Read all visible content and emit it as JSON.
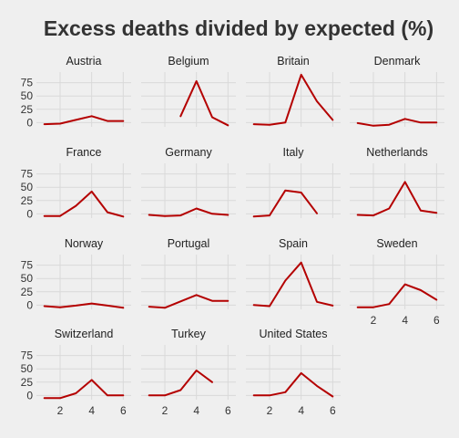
{
  "chart_data": {
    "type": "line",
    "title": "Excess deaths divided by expected (%)",
    "xlabel": "",
    "ylabel": "",
    "xlim": [
      0.5,
      6.5
    ],
    "ylim": [
      -8,
      95
    ],
    "x_ticks": [
      2,
      4,
      6
    ],
    "y_ticks": [
      0,
      25,
      50,
      75
    ],
    "grid": true,
    "line_color": "#b40000",
    "panel_background": "#efefef",
    "grid_color": "#d9d9d9",
    "series": [
      {
        "name": "Austria",
        "x": [
          1,
          2,
          3,
          4,
          5,
          6
        ],
        "values": [
          -3,
          -2,
          5,
          12,
          3,
          3
        ]
      },
      {
        "name": "Belgium",
        "x": [
          3,
          4,
          5,
          6
        ],
        "values": [
          12,
          78,
          10,
          -5
        ]
      },
      {
        "name": "Britain",
        "x": [
          1,
          2,
          3,
          4,
          5,
          6
        ],
        "values": [
          -3,
          -4,
          0,
          90,
          40,
          5
        ]
      },
      {
        "name": "Denmark",
        "x": [
          1,
          2,
          3,
          4,
          5,
          6
        ],
        "values": [
          -1,
          -6,
          -4,
          7,
          0,
          0
        ]
      },
      {
        "name": "France",
        "x": [
          1,
          2,
          3,
          4,
          5,
          6
        ],
        "values": [
          -4,
          -4,
          15,
          42,
          3,
          -5
        ]
      },
      {
        "name": "Germany",
        "x": [
          1,
          2,
          3,
          4,
          5,
          6
        ],
        "values": [
          -2,
          -4,
          -3,
          10,
          0,
          -2
        ]
      },
      {
        "name": "Italy",
        "x": [
          1,
          2,
          3,
          4,
          5
        ],
        "values": [
          -5,
          -3,
          44,
          40,
          1
        ]
      },
      {
        "name": "Netherlands",
        "x": [
          1,
          2,
          3,
          4,
          5,
          6
        ],
        "values": [
          -2,
          -3,
          10,
          60,
          6,
          2
        ]
      },
      {
        "name": "Norway",
        "x": [
          1,
          2,
          3,
          4,
          5,
          6
        ],
        "values": [
          -2,
          -4,
          -1,
          3,
          -1,
          -5
        ]
      },
      {
        "name": "Portugal",
        "x": [
          1,
          2,
          3,
          4,
          5,
          6
        ],
        "values": [
          -3,
          -5,
          7,
          19,
          8,
          8
        ]
      },
      {
        "name": "Spain",
        "x": [
          1,
          2,
          3,
          4,
          5,
          6
        ],
        "values": [
          0,
          -2,
          46,
          80,
          6,
          -1
        ]
      },
      {
        "name": "Sweden",
        "x": [
          1,
          2,
          3,
          4,
          5,
          6
        ],
        "values": [
          -4,
          -4,
          2,
          39,
          28,
          10
        ]
      },
      {
        "name": "Switzerland",
        "x": [
          1,
          2,
          3,
          4,
          5,
          6
        ],
        "values": [
          -5,
          -5,
          4,
          29,
          0,
          0
        ]
      },
      {
        "name": "Turkey",
        "x": [
          1,
          2,
          3,
          4,
          5
        ],
        "values": [
          0,
          0,
          10,
          47,
          25
        ]
      },
      {
        "name": "United States",
        "x": [
          1,
          2,
          3,
          4,
          5,
          6
        ],
        "values": [
          0,
          0,
          6,
          42,
          18,
          -2
        ]
      }
    ]
  }
}
